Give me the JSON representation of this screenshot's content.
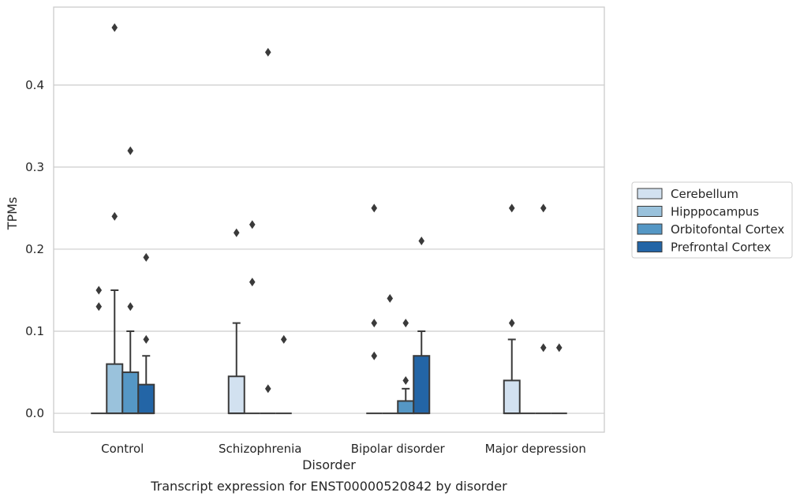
{
  "chart_data": {
    "type": "box",
    "caption": "Transcript expression for ENST00000520842 by disorder",
    "xlabel": "Disorder",
    "ylabel": "TPMs",
    "ylim": [
      -0.023,
      0.495
    ],
    "yticks": [
      0.0,
      0.1,
      0.2,
      0.3,
      0.4
    ],
    "ytick_labels": [
      "0.0",
      "0.1",
      "0.2",
      "0.3",
      "0.4"
    ],
    "grid": "horizontal",
    "legend_position": "right",
    "categories": [
      "Control",
      "Schizophrenia",
      "Bipolar disorder",
      "Major depression"
    ],
    "series": [
      {
        "name": "Cerebellum",
        "color": "#d2e1f0",
        "boxes": [
          {
            "q1": 0,
            "q3": 0,
            "median": 0,
            "whisker_low": 0,
            "whisker_high": 0,
            "outliers": [
              0.13,
              0.15
            ]
          },
          {
            "q1": 0,
            "q3": 0.045,
            "median": 0,
            "whisker_low": 0,
            "whisker_high": 0.11,
            "outliers": [
              0.22
            ]
          },
          {
            "q1": 0,
            "q3": 0,
            "median": 0,
            "whisker_low": 0,
            "whisker_high": 0,
            "outliers": [
              0.07,
              0.11,
              0.25
            ]
          },
          {
            "q1": 0,
            "q3": 0.04,
            "median": 0,
            "whisker_low": 0,
            "whisker_high": 0.09,
            "outliers": [
              0.11,
              0.25
            ]
          }
        ]
      },
      {
        "name": "Hipppocampus",
        "color": "#9ac2dc",
        "boxes": [
          {
            "q1": 0,
            "q3": 0.06,
            "median": 0,
            "whisker_low": 0,
            "whisker_high": 0.15,
            "outliers": [
              0.24,
              0.47
            ]
          },
          {
            "q1": 0,
            "q3": 0,
            "median": 0,
            "whisker_low": 0,
            "whisker_high": 0,
            "outliers": [
              0.16,
              0.23
            ]
          },
          {
            "q1": 0,
            "q3": 0,
            "median": 0,
            "whisker_low": 0,
            "whisker_high": 0,
            "outliers": [
              0.14
            ]
          },
          {
            "q1": 0,
            "q3": 0,
            "median": 0,
            "whisker_low": 0,
            "whisker_high": 0,
            "outliers": []
          }
        ]
      },
      {
        "name": "Orbitofontal Cortex",
        "color": "#5597c5",
        "boxes": [
          {
            "q1": 0,
            "q3": 0.05,
            "median": 0,
            "whisker_low": 0,
            "whisker_high": 0.1,
            "outliers": [
              0.13,
              0.32
            ]
          },
          {
            "q1": 0,
            "q3": 0,
            "median": 0,
            "whisker_low": 0,
            "whisker_high": 0,
            "outliers": [
              0.03,
              0.44
            ]
          },
          {
            "q1": 0,
            "q3": 0.015,
            "median": 0,
            "whisker_low": 0,
            "whisker_high": 0.03,
            "outliers": [
              0.04,
              0.11
            ]
          },
          {
            "q1": 0,
            "q3": 0,
            "median": 0,
            "whisker_low": 0,
            "whisker_high": 0,
            "outliers": [
              0.08,
              0.25
            ]
          }
        ]
      },
      {
        "name": "Prefrontal Cortex",
        "color": "#2365a6",
        "boxes": [
          {
            "q1": 0,
            "q3": 0.035,
            "median": 0,
            "whisker_low": 0,
            "whisker_high": 0.07,
            "outliers": [
              0.09,
              0.19
            ]
          },
          {
            "q1": 0,
            "q3": 0,
            "median": 0,
            "whisker_low": 0,
            "whisker_high": 0,
            "outliers": [
              0.09
            ]
          },
          {
            "q1": 0,
            "q3": 0.07,
            "median": 0,
            "whisker_low": 0,
            "whisker_high": 0.1,
            "outliers": [
              0.21
            ]
          },
          {
            "q1": 0,
            "q3": 0,
            "median": 0,
            "whisker_low": 0,
            "whisker_high": 0,
            "outliers": [
              0.08
            ]
          }
        ]
      }
    ]
  }
}
